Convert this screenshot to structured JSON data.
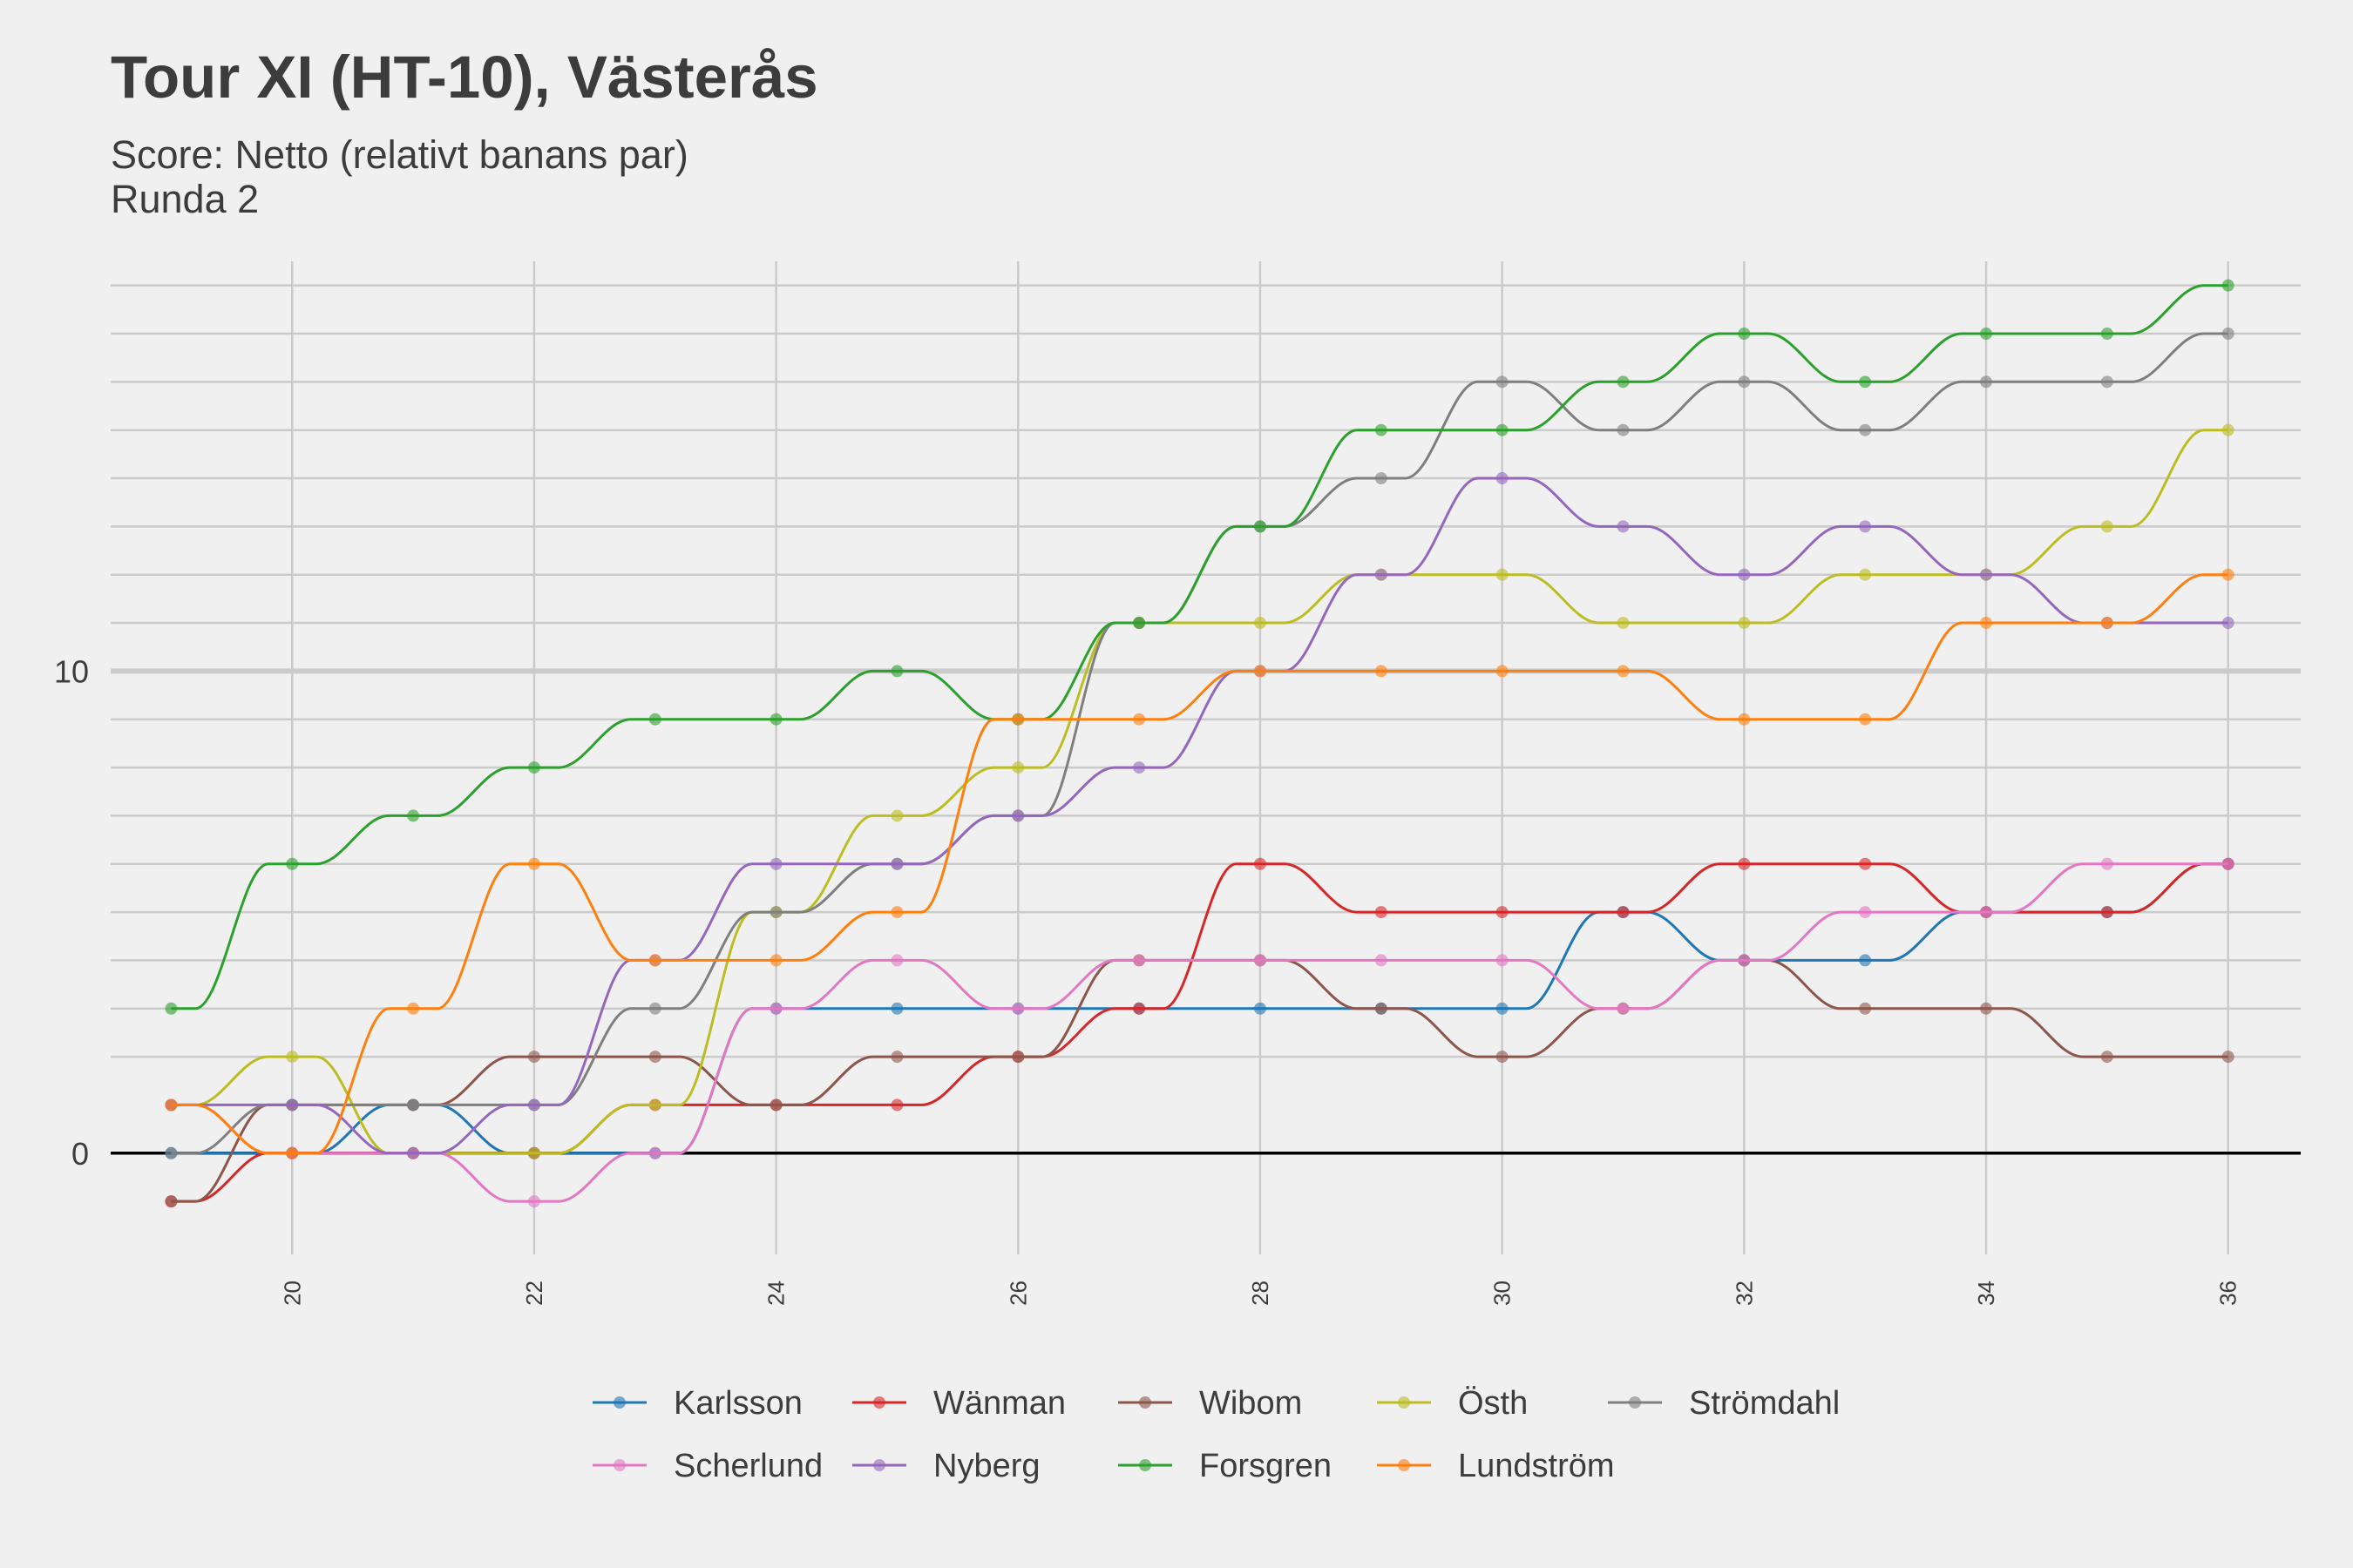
{
  "chart_data": {
    "type": "line",
    "title": "Tour XI (HT-10), Västerås",
    "subtitle_lines": [
      "Score: Netto (relativt banans par)",
      "Runda 2"
    ],
    "xlabel": "",
    "ylabel": "",
    "xlim": [
      18.5,
      36.6
    ],
    "ylim": [
      -2.1,
      18.5
    ],
    "x": [
      19,
      20,
      21,
      22,
      23,
      24,
      25,
      26,
      27,
      28,
      29,
      30,
      31,
      32,
      33,
      34,
      35,
      36
    ],
    "x_ticks": [
      20,
      22,
      24,
      26,
      28,
      30,
      32,
      34,
      36
    ],
    "y_ticks_labeled": [
      0,
      10
    ],
    "y_gridlines": [
      0,
      2,
      3,
      4,
      5,
      6,
      7,
      8,
      9,
      10,
      11,
      12,
      13,
      14,
      15,
      16,
      17,
      18
    ],
    "legend_position": "bottom",
    "grid": true,
    "series": [
      {
        "name": "Karlsson",
        "color": "#1f77b4",
        "values": [
          0,
          0,
          1,
          0,
          0,
          3,
          3,
          3,
          3,
          3,
          3,
          3,
          5,
          4,
          4,
          5,
          5,
          6
        ]
      },
      {
        "name": "Wänman",
        "color": "#d62728",
        "values": [
          -1,
          0,
          0,
          0,
          1,
          1,
          1,
          2,
          3,
          6,
          5,
          5,
          5,
          6,
          6,
          5,
          5,
          6
        ]
      },
      {
        "name": "Wibom",
        "color": "#8c564b",
        "values": [
          -1,
          1,
          1,
          2,
          2,
          1,
          2,
          2,
          4,
          4,
          3,
          2,
          3,
          4,
          3,
          3,
          2,
          2
        ]
      },
      {
        "name": "Östh",
        "color": "#bcbd22",
        "values": [
          1,
          2,
          0,
          0,
          1,
          5,
          7,
          8,
          11,
          11,
          12,
          12,
          11,
          11,
          12,
          12,
          13,
          15
        ]
      },
      {
        "name": "Strömdahl",
        "color": "#7f7f7f",
        "values": [
          0,
          1,
          1,
          1,
          3,
          5,
          6,
          7,
          11,
          13,
          14,
          16,
          15,
          16,
          15,
          16,
          16,
          17
        ]
      },
      {
        "name": "Scherlund",
        "color": "#e377c2",
        "values": [
          1,
          0,
          0,
          -1,
          0,
          3,
          4,
          3,
          4,
          4,
          4,
          4,
          3,
          4,
          5,
          5,
          6,
          6
        ]
      },
      {
        "name": "Nyberg",
        "color": "#9467bd",
        "values": [
          1,
          1,
          0,
          1,
          4,
          6,
          6,
          7,
          8,
          10,
          12,
          14,
          13,
          12,
          13,
          12,
          11,
          11
        ]
      },
      {
        "name": "Forsgren",
        "color": "#2ca02c",
        "values": [
          3,
          6,
          7,
          8,
          9,
          9,
          10,
          9,
          11,
          13,
          15,
          15,
          16,
          17,
          16,
          17,
          17,
          18
        ]
      },
      {
        "name": "Lundström",
        "color": "#ff7f0e",
        "values": [
          1,
          0,
          3,
          6,
          4,
          4,
          5,
          9,
          9,
          10,
          10,
          10,
          10,
          9,
          9,
          11,
          11,
          12
        ]
      }
    ],
    "legend_rows": [
      [
        "Karlsson",
        "Wänman",
        "Wibom",
        "Östh",
        "Strömdahl"
      ],
      [
        "Scherlund",
        "Nyberg",
        "Forsgren",
        "Lundström"
      ]
    ]
  }
}
